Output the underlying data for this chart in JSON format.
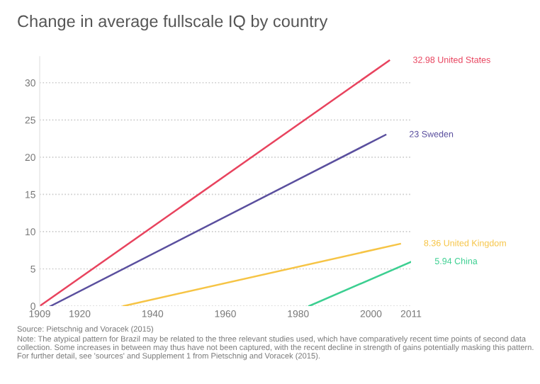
{
  "chart_data": {
    "type": "line",
    "title": "Change in average fullscale IQ by country",
    "series": [
      {
        "name": "United States",
        "color": "#e8435e",
        "x": [
          1909,
          2005
        ],
        "values": [
          0,
          32.98
        ],
        "value_labels": [
          null,
          "32.98"
        ]
      },
      {
        "name": "Sweden",
        "color": "#5a4f9e",
        "x": [
          1912,
          2004
        ],
        "values": [
          0,
          23
        ],
        "value_labels": [
          null,
          "23"
        ]
      },
      {
        "name": "United Kingdom",
        "color": "#f6c445",
        "x": [
          1932,
          2008
        ],
        "values": [
          0,
          8.36
        ],
        "value_labels": [
          null,
          "8.36"
        ]
      },
      {
        "name": "China",
        "color": "#3ccf91",
        "x": [
          1983,
          2011
        ],
        "values": [
          0,
          5.94
        ],
        "value_labels": [
          null,
          "5.94"
        ]
      }
    ],
    "xlim": [
      1909,
      2011
    ],
    "xticks": [
      1909,
      1920,
      1940,
      1960,
      1980,
      2000,
      2011
    ],
    "ylim": [
      0,
      33.5
    ],
    "yticks": [
      0,
      5,
      10,
      15,
      20,
      25,
      30
    ],
    "grid": "y",
    "legend": false,
    "annotations": [
      "Source: Pietschnig and Voracek (2015)",
      "Note: The atypical pattern for Brazil may be related to the three relevant studies used, which have comparatively recent time points of second data collection. Some increases in between may thus have not been captured, with the recent decline in strength of gains potentially masking this pattern. For further detail, see 'sources' and Supplement 1 from Pietschnig and Voracek (2015)."
    ]
  }
}
